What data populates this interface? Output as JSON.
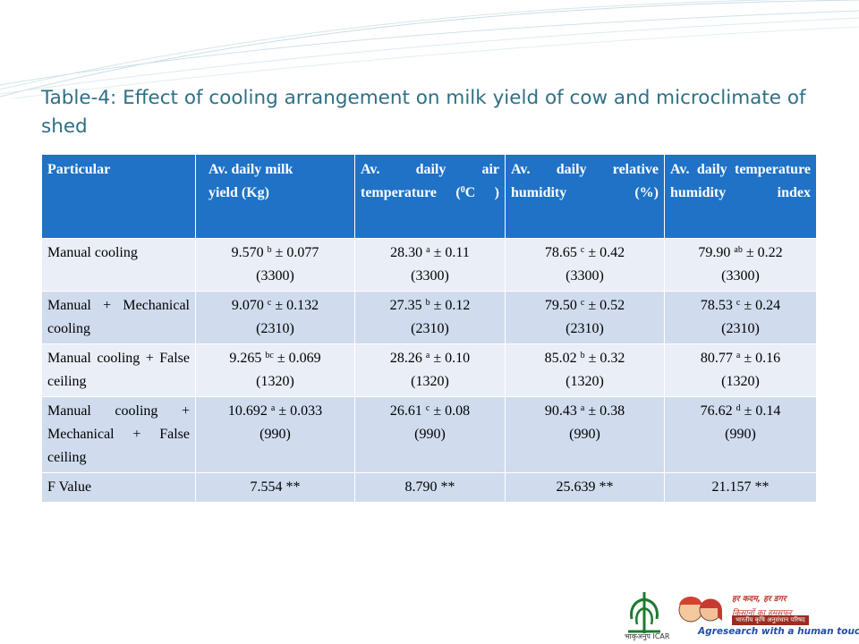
{
  "title": "Table-4: Effect of  cooling arrangement on milk yield of cow and microclimate of shed",
  "table": {
    "headers": [
      "Particular",
      "Av. daily milk yield (Kg)",
      "Av. daily air temperature (0C )",
      "Av. daily relative humidity (%)",
      "Av. daily temperature humidity index"
    ],
    "rows": [
      {
        "particular": "Manual cooling",
        "cells": [
          {
            "value": "9.570",
            "sup": "b",
            "se": "± 0.077",
            "n": "(3300)"
          },
          {
            "value": "28.30",
            "sup": "a",
            "se": "± 0.11",
            "n": "(3300)"
          },
          {
            "value": "78.65",
            "sup": "c",
            "se": "± 0.42",
            "n": "(3300)"
          },
          {
            "value": "79.90",
            "sup": "ab",
            "se": "± 0.22",
            "n": "(3300)"
          }
        ]
      },
      {
        "particular": "Manual + Mechanical cooling",
        "cells": [
          {
            "value": "9.070",
            "sup": "c",
            "se": "± 0.132",
            "n": "(2310)"
          },
          {
            "value": "27.35",
            "sup": "b",
            "se": "± 0.12",
            "n": "(2310)"
          },
          {
            "value": "79.50",
            "sup": "c",
            "se": "± 0.52",
            "n": "(2310)"
          },
          {
            "value": "78.53",
            "sup": "c",
            "se": "± 0.24",
            "n": "(2310)"
          }
        ]
      },
      {
        "particular": "Manual cooling + False ceiling",
        "cells": [
          {
            "value": "9.265",
            "sup": "bc",
            "se": "± 0.069",
            "n": "(1320)"
          },
          {
            "value": "28.26",
            "sup": "a",
            "se": "± 0.10",
            "n": "(1320)"
          },
          {
            "value": "85.02",
            "sup": "b",
            "se": "± 0.32",
            "n": "(1320)"
          },
          {
            "value": "80.77",
            "sup": "a",
            "se": "± 0.16",
            "n": "(1320)"
          }
        ]
      },
      {
        "particular": "Manual cooling + Mechanical + False ceiling",
        "cells": [
          {
            "value": "10.692",
            "sup": "a",
            "se": "± 0.033",
            "n": "(990)"
          },
          {
            "value": "26.61",
            "sup": "c",
            "se": "± 0.08",
            "n": "(990)"
          },
          {
            "value": "90.43",
            "sup": "a",
            "se": "± 0.38",
            "n": "(990)"
          },
          {
            "value": "76.62",
            "sup": "d",
            "se": "± 0.14",
            "n": "(990)"
          }
        ]
      }
    ],
    "f_value": {
      "label": "F Value",
      "values": [
        "7.554 **",
        "8.790 **",
        "25.639 **",
        "21.157 **"
      ]
    }
  },
  "branding": {
    "logo_left_caption": "भाकृअनुप",
    "logo_left_text": "ICAR",
    "hindi_line_1": "हर कदम, हर डगर",
    "hindi_line_2": "किसानों का हमसफर",
    "hindi_line_3": "भारतीय कृषि अनुसंधान परिषद",
    "tagline": "Agresearch with a human touch"
  },
  "colors": {
    "header_bg": "#1f72c6",
    "row_odd": "#d0dcee",
    "row_even": "#e9eef7",
    "title": "#2e6f86"
  }
}
